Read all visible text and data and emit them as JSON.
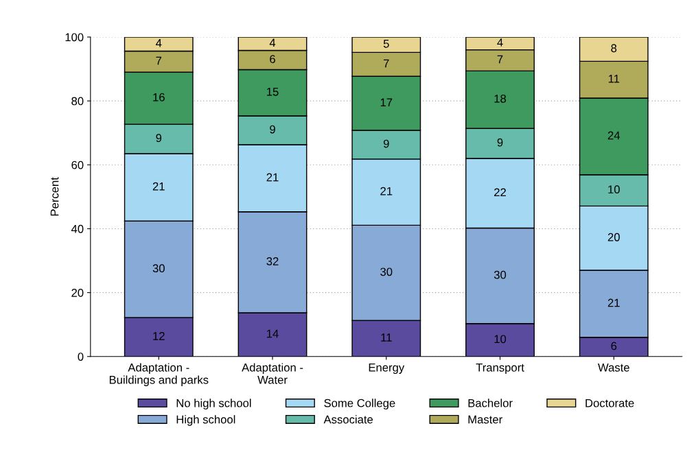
{
  "chart_data": {
    "type": "bar",
    "stacked": true,
    "ylabel": "Percent",
    "categories": [
      "Adaptation -\nBuildings and parks",
      "Adaptation -\nWater",
      "Energy",
      "Transport",
      "Waste"
    ],
    "ylim": [
      0,
      100
    ],
    "yticks": [
      0,
      20,
      40,
      60,
      80,
      100
    ],
    "grid": "y",
    "legend": "bottom",
    "series": [
      {
        "name": "No high school",
        "color": "#5b4b9f",
        "values": [
          12.2,
          13.7,
          11.3,
          10.3,
          6.0
        ],
        "value_labels": [
          "12",
          "14",
          "11",
          "10",
          "6"
        ]
      },
      {
        "name": "High school",
        "color": "#87aad6",
        "values": [
          30.2,
          31.6,
          29.8,
          29.9,
          21.0
        ],
        "value_labels": [
          "30",
          "32",
          "30",
          "30",
          "21"
        ]
      },
      {
        "name": "Some College",
        "color": "#a5d8f3",
        "values": [
          21.1,
          21.0,
          20.7,
          21.8,
          20.1
        ],
        "value_labels": [
          "21",
          "21",
          "21",
          "22",
          "20"
        ]
      },
      {
        "name": "Associate",
        "color": "#66bbaa",
        "values": [
          9.2,
          9.0,
          9.0,
          9.4,
          9.8
        ],
        "value_labels": [
          "9",
          "9",
          "9",
          "9",
          "10"
        ]
      },
      {
        "name": "Bachelor",
        "color": "#3f9a5f",
        "values": [
          16.3,
          14.5,
          16.9,
          18.0,
          24.0
        ],
        "value_labels": [
          "16",
          "15",
          "17",
          "18",
          "24"
        ]
      },
      {
        "name": "Master",
        "color": "#b0ab5a",
        "values": [
          6.6,
          6.0,
          7.5,
          6.6,
          11.5
        ],
        "value_labels": [
          "7",
          "6",
          "7",
          "7",
          "11"
        ]
      },
      {
        "name": "Doctorate",
        "color": "#e8d591",
        "values": [
          4.4,
          4.2,
          4.8,
          4.0,
          7.6
        ],
        "value_labels": [
          "4",
          "4",
          "5",
          "4",
          "8"
        ]
      }
    ]
  }
}
